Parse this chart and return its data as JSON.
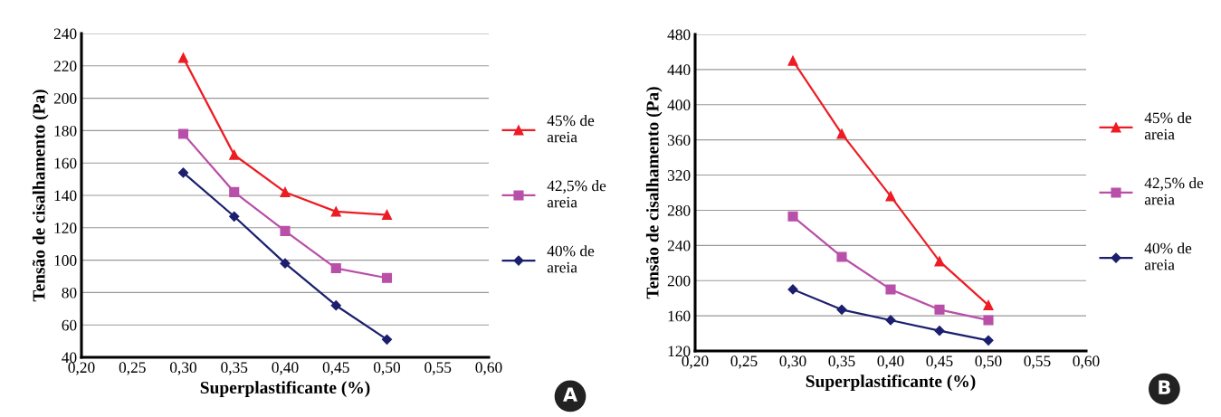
{
  "chart_data": [
    {
      "type": "line",
      "xlabel": "Superplastificante (%)",
      "ylabel": "Tensão de cisalhamento (Pa)",
      "x": [
        0.3,
        0.35,
        0.4,
        0.45,
        0.5
      ],
      "series": [
        {
          "name": "45% de areia",
          "color": "#ed1c24",
          "marker": "triangle",
          "values": [
            225,
            165,
            142,
            130,
            128
          ]
        },
        {
          "name": "42,5% de areia",
          "color": "#b84fa8",
          "marker": "square",
          "values": [
            178,
            142,
            118,
            95,
            89
          ]
        },
        {
          "name": "40% de areia",
          "color": "#1b1f6e",
          "marker": "diamond",
          "values": [
            154,
            127,
            98,
            72,
            51
          ]
        }
      ],
      "xlim": [
        0.2,
        0.6
      ],
      "xticks": [
        {
          "value": 0.2,
          "label": "0,20"
        },
        {
          "value": 0.25,
          "label": "0,25"
        },
        {
          "value": 0.3,
          "label": "0,30"
        },
        {
          "value": 0.35,
          "label": "0,35"
        },
        {
          "value": 0.4,
          "label": "0,40"
        },
        {
          "value": 0.45,
          "label": "0,45"
        },
        {
          "value": 0.5,
          "label": "0,50"
        },
        {
          "value": 0.55,
          "label": "0,55"
        },
        {
          "value": 0.6,
          "label": "0,60"
        }
      ],
      "ylim": [
        40,
        240
      ],
      "yticks": [
        40,
        60,
        80,
        100,
        120,
        140,
        160,
        180,
        200,
        220,
        240
      ],
      "grid": "y",
      "legend": "right",
      "line_style": "solid",
      "annotations": [
        "A"
      ]
    },
    {
      "type": "line",
      "xlabel": "Superplastificante (%)",
      "ylabel": "Tensão de cisalhamento (Pa)",
      "x": [
        0.3,
        0.35,
        0.4,
        0.45,
        0.5
      ],
      "series": [
        {
          "name": "45% de areia",
          "color": "#ed1c24",
          "marker": "triangle",
          "values": [
            450,
            367,
            296,
            222,
            172
          ]
        },
        {
          "name": "42,5% de areia",
          "color": "#b84fa8",
          "marker": "square",
          "values": [
            273,
            227,
            190,
            167,
            155
          ]
        },
        {
          "name": "40% de areia",
          "color": "#1b1f6e",
          "marker": "diamond",
          "values": [
            190,
            167,
            155,
            143,
            132
          ]
        }
      ],
      "xlim": [
        0.2,
        0.6
      ],
      "xticks": [
        {
          "value": 0.2,
          "label": "0,20"
        },
        {
          "value": 0.25,
          "label": "0,25"
        },
        {
          "value": 0.3,
          "label": "0,30"
        },
        {
          "value": 0.35,
          "label": "0,35"
        },
        {
          "value": 0.4,
          "label": "0,40"
        },
        {
          "value": 0.45,
          "label": "0,45"
        },
        {
          "value": 0.5,
          "label": "0,50"
        },
        {
          "value": 0.55,
          "label": "0,55"
        },
        {
          "value": 0.6,
          "label": "0,60"
        }
      ],
      "ylim": [
        120,
        480
      ],
      "yticks": [
        120,
        160,
        200,
        240,
        280,
        320,
        360,
        400,
        440,
        480
      ],
      "grid": "y",
      "legend": "right",
      "line_style": "solid",
      "annotations": [
        "B"
      ]
    }
  ]
}
